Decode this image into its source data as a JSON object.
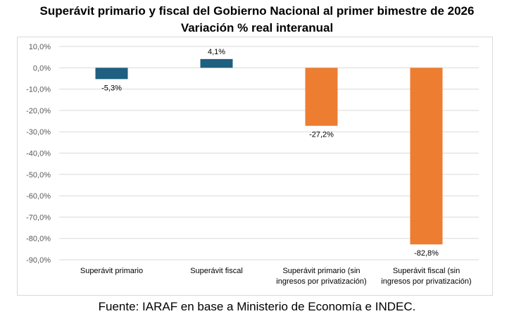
{
  "chart_data": {
    "type": "bar",
    "title": "Superávit primario y fiscal del Gobierno Nacional al primer bimestre de 2026",
    "subtitle": "Variación % real interanual",
    "categories": [
      [
        "Superávit primario"
      ],
      [
        "Superávit fiscal"
      ],
      [
        "Superávit primario (sin",
        "ingresos por privatización)"
      ],
      [
        "Superávit fiscal (sin",
        "ingresos por privatización)"
      ]
    ],
    "values": [
      -5.3,
      4.1,
      -27.2,
      -82.8
    ],
    "data_labels": [
      "-5,3%",
      "4,1%",
      "-27,2%",
      "-82,8%"
    ],
    "colors": [
      "#1f5f80",
      "#1f5f80",
      "#ed7d31",
      "#ed7d31"
    ],
    "ylim": [
      -90,
      10
    ],
    "yticks": [
      10,
      0,
      -10,
      -20,
      -30,
      -40,
      -50,
      -60,
      -70,
      -80,
      -90
    ],
    "ytick_labels": [
      "10,0%",
      "0,0%",
      "-10,0%",
      "-20,0%",
      "-30,0%",
      "-40,0%",
      "-50,0%",
      "-60,0%",
      "-70,0%",
      "-80,0%",
      "-90,0%"
    ],
    "grid": true,
    "xlabel": "",
    "ylabel": ""
  },
  "source": "Fuente: IARAF en base a Ministerio de Economía e INDEC."
}
